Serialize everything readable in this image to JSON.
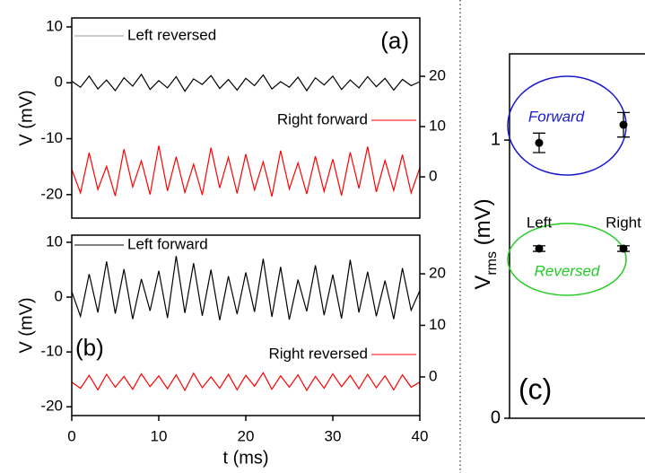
{
  "chart_data": [
    {
      "type": "line",
      "label": "(a)",
      "ylabel": "V (mV)",
      "xlim": [
        0,
        40
      ],
      "ylim": [
        -24.2,
        11.6
      ],
      "yticks": [
        -20,
        -10,
        0,
        10
      ],
      "y2lim": [
        -8.2,
        31.6
      ],
      "y2ticks": [
        0,
        10,
        20
      ],
      "x": [
        0,
        1,
        2,
        3,
        4,
        5,
        6,
        7,
        8,
        9,
        10,
        11,
        12,
        13,
        14,
        15,
        16,
        17,
        18,
        19,
        20,
        21,
        22,
        23,
        24,
        25,
        26,
        27,
        28,
        29,
        30,
        31,
        32,
        33,
        34,
        35,
        36,
        37,
        38,
        39,
        40
      ],
      "series": [
        {
          "name": "Left reversed",
          "color": "#000000",
          "values": [
            0.3,
            -0.8,
            1.2,
            -1.1,
            0.5,
            -1.4,
            0.9,
            -0.6,
            1.5,
            -1.2,
            0.4,
            -0.9,
            1.1,
            -1.5,
            0.7,
            -0.3,
            1.3,
            -1.0,
            0.6,
            -1.3,
            0.8,
            -0.5,
            1.4,
            -1.1,
            0.2,
            -0.8,
            1.0,
            -1.4,
            0.9,
            -0.4,
            1.2,
            -1.2,
            0.5,
            -0.9,
            1.1,
            -0.7,
            0.8,
            -1.3,
            0.6,
            -0.5,
            0.2
          ]
        },
        {
          "name": "Right forward",
          "color": "#ff0000",
          "axis": "y2",
          "values": [
            1.5,
            -3.2,
            4.8,
            -2.5,
            2.1,
            -3.8,
            5.5,
            -2.0,
            3.2,
            -3.5,
            6.2,
            -2.8,
            4.0,
            -3.1,
            2.5,
            -3.6,
            5.8,
            -2.2,
            3.9,
            -3.3,
            4.5,
            -2.6,
            3.0,
            -3.9,
            5.2,
            -2.4,
            2.8,
            -3.4,
            4.1,
            -2.9,
            3.5,
            -3.7,
            4.9,
            -2.3,
            6.0,
            -3.0,
            3.3,
            -2.7,
            4.4,
            -3.2,
            1.8
          ]
        }
      ]
    },
    {
      "type": "line",
      "label": "(b)",
      "ylabel": "V (mV)",
      "xlabel": "t (ms)",
      "xlim": [
        0,
        40
      ],
      "xticks": [
        0,
        10,
        20,
        30,
        40
      ],
      "ylim": [
        -21.6,
        11.3
      ],
      "yticks": [
        -20,
        -10,
        0,
        10
      ],
      "y2lim": [
        -7.5,
        27.5
      ],
      "y2ticks": [
        0,
        10,
        20
      ],
      "x": [
        0,
        1,
        2,
        3,
        4,
        5,
        6,
        7,
        8,
        9,
        10,
        11,
        12,
        13,
        14,
        15,
        16,
        17,
        18,
        19,
        20,
        21,
        22,
        23,
        24,
        25,
        26,
        27,
        28,
        29,
        30,
        31,
        32,
        33,
        34,
        35,
        36,
        37,
        38,
        39,
        40
      ],
      "series": [
        {
          "name": "Left forward",
          "color": "#000000",
          "values": [
            1.0,
            -3.5,
            4.2,
            -2.8,
            6.5,
            -3.0,
            5.1,
            -4.0,
            3.3,
            -2.5,
            4.8,
            -3.8,
            7.5,
            -2.9,
            6.2,
            -3.4,
            5.0,
            -4.2,
            3.8,
            -3.1,
            4.5,
            -2.7,
            7.0,
            -3.6,
            5.5,
            -4.1,
            3.2,
            -2.6,
            5.8,
            -3.3,
            4.1,
            -3.9,
            6.8,
            -2.8,
            4.6,
            -3.5,
            3.0,
            -4.0,
            5.3,
            -2.4,
            1.2
          ]
        },
        {
          "name": "Right reversed",
          "color": "#ff0000",
          "axis": "y2",
          "values": [
            -1,
            -2.2,
            0.3,
            -2.5,
            0.5,
            -2.0,
            0.1,
            -2.4,
            0.6,
            -1.9,
            0.2,
            -2.3,
            0.4,
            -2.6,
            0.7,
            -2.1,
            0.0,
            -2.2,
            0.5,
            -2.5,
            0.3,
            -1.8,
            0.8,
            -2.4,
            0.2,
            -2.0,
            0.4,
            -2.6,
            0.1,
            -2.2,
            0.6,
            -1.9,
            0.3,
            -2.3,
            0.5,
            -2.1,
            0.2,
            -2.5,
            0.4,
            -2.0,
            -1.0
          ]
        }
      ]
    },
    {
      "type": "errorbar",
      "label": "(c)",
      "ylabel": [
        "V",
        "rms",
        " (mV)"
      ],
      "ylim": [
        0,
        1.31
      ],
      "yticks": [
        0,
        1
      ],
      "categories": [
        "Left",
        "Right"
      ],
      "series": [
        {
          "name": "Forward",
          "color": "#1a1acc",
          "values": [
            0.99,
            1.055
          ],
          "errors": [
            0.035,
            0.044
          ]
        },
        {
          "name": "Reversed",
          "color": "#22cc22",
          "values": [
            0.61,
            0.61
          ],
          "errors": [
            0.01,
            0.01
          ]
        }
      ]
    }
  ]
}
